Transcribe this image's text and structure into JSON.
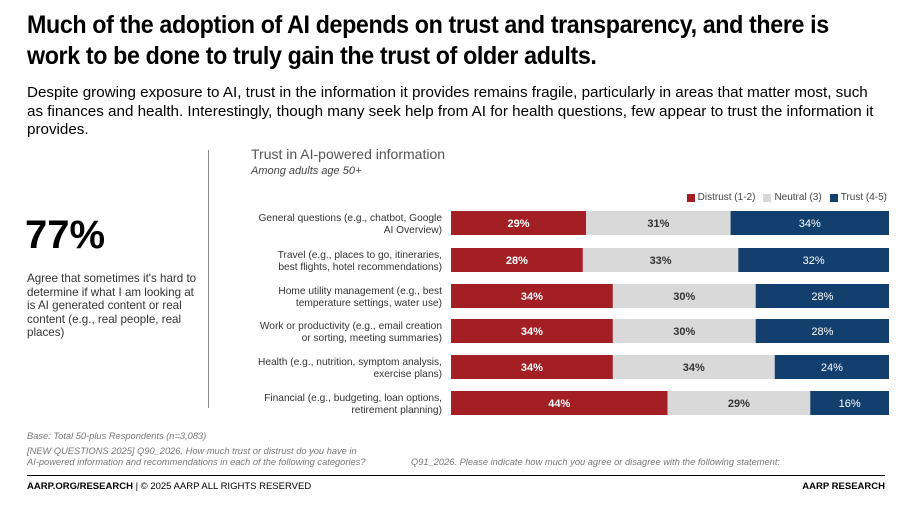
{
  "header": {
    "title": "Much of the adoption of AI depends on trust and transparency, and there is work to be done to truly gain the trust of older adults.",
    "subtitle": "Despite growing exposure to AI, trust in the information it provides remains fragile, particularly in areas that matter most, such as finances and health. Interestingly, though many seek help from AI for health questions, few appear to trust the information it provides."
  },
  "stat": {
    "value": "77%",
    "description": "Agree that sometimes it's hard to determine if what I am looking at is AI generated content or real content (e.g., real people, real places)"
  },
  "colors": {
    "distrust": "#A31F24",
    "neutral": "#D9D9D9",
    "trust": "#133F6E"
  },
  "chart_data": {
    "type": "bar",
    "orientation": "horizontal-stacked-100",
    "title": "Trust in AI-powered information",
    "subtitle": "Among adults age 50+",
    "categories": [
      "General questions (e.g., chatbot, Google AI Overview)",
      "Travel (e.g., places to go, itineraries, best flights, hotel recommendations)",
      "Home utility management (e.g., best temperature settings, water use)",
      "Work or productivity (e.g., email creation or sorting, meeting summaries)",
      "Health (e.g., nutrition, symptom analysis, exercise plans)",
      "Financial (e.g., budgeting, loan options, retirement planning)"
    ],
    "category_lines": [
      [
        "General questions (e.g., chatbot, Google",
        "AI Overview)"
      ],
      [
        "Travel (e.g., places to go, itineraries,",
        "best flights, hotel recommendations)"
      ],
      [
        "Home utility management (e.g., best",
        "temperature settings, water use)"
      ],
      [
        "Work or productivity (e.g., email creation",
        "or sorting, meeting summaries)"
      ],
      [
        "Health (e.g., nutrition, symptom analysis,",
        "exercise plans)"
      ],
      [
        "Financial (e.g., budgeting, loan options,",
        "retirement planning)"
      ]
    ],
    "series": [
      {
        "name": "Distrust (1-2)",
        "key": "distrust",
        "values": [
          29,
          28,
          34,
          34,
          34,
          44
        ]
      },
      {
        "name": "Neutral (3)",
        "key": "neutral",
        "values": [
          31,
          33,
          30,
          30,
          34,
          29
        ]
      },
      {
        "name": "Trust (4-5)",
        "key": "trust",
        "values": [
          34,
          32,
          28,
          28,
          24,
          16
        ]
      }
    ],
    "value_suffix": "%",
    "legend_position": "top-right",
    "grid": false,
    "xlim": [
      0,
      100
    ]
  },
  "footnotes": {
    "base": "Base: Total 50-plus Respondents (n=3,083)",
    "q90_line1": "[NEW QUESTIONS 2025] Q90_2026. How much trust or distrust do you have in",
    "q90_line2": "AI-powered information and recommendations in each of the following categories?",
    "q91": "Q91_2026. Please indicate how much you agree or disagree with the following statement:"
  },
  "footer": {
    "left_bold": "AARP.ORG/RESEARCH",
    "left_rest": " | © 2025 AARP ALL RIGHTS RESERVED",
    "right": "AARP RESEARCH"
  }
}
